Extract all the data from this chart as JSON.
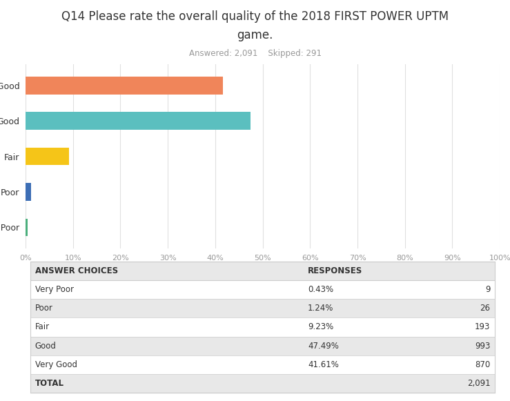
{
  "title_line1": "Q14 Please rate the overall quality of the 2018 FIRST POWER UPTM",
  "title_line2": "game.",
  "subtitle": "Answered: 2,091    Skipped: 291",
  "categories": [
    "Very Poor",
    "Poor",
    "Fair",
    "Good",
    "Very Good"
  ],
  "values": [
    0.43,
    1.24,
    9.23,
    47.49,
    41.61
  ],
  "bar_colors": [
    "#4caf7d",
    "#3d6eb5",
    "#f5c518",
    "#5bbfbf",
    "#f0855a"
  ],
  "xlim": [
    0,
    100
  ],
  "xtick_labels": [
    "0%",
    "10%",
    "20%",
    "30%",
    "40%",
    "50%",
    "60%",
    "70%",
    "80%",
    "90%",
    "100%"
  ],
  "xtick_values": [
    0,
    10,
    20,
    30,
    40,
    50,
    60,
    70,
    80,
    90,
    100
  ],
  "table_headers": [
    "ANSWER CHOICES",
    "RESPONSES"
  ],
  "table_rows": [
    [
      "Very Poor",
      "0.43%",
      "9"
    ],
    [
      "Poor",
      "1.24%",
      "26"
    ],
    [
      "Fair",
      "9.23%",
      "193"
    ],
    [
      "Good",
      "47.49%",
      "993"
    ],
    [
      "Very Good",
      "41.61%",
      "870"
    ]
  ],
  "table_total": [
    "TOTAL",
    "",
    "2,091"
  ],
  "bg_color": "#ffffff",
  "grid_color": "#e0e0e0",
  "text_color": "#333333",
  "subtitle_color": "#999999",
  "table_header_bg": "#e8e8e8",
  "table_row_bg": "#ffffff",
  "table_line_color": "#cccccc"
}
